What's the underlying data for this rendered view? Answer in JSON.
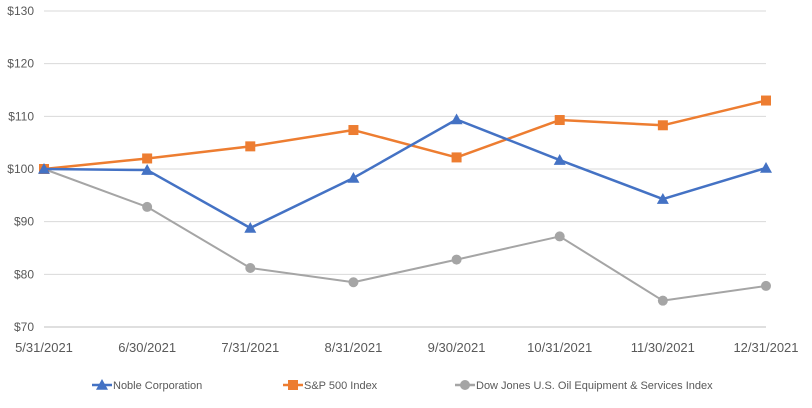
{
  "chart_data": {
    "type": "line",
    "title": "",
    "xlabel": "",
    "ylabel": "",
    "categories": [
      "5/31/2021",
      "6/30/2021",
      "7/31/2021",
      "8/31/2021",
      "9/30/2021",
      "10/31/2021",
      "11/30/2021",
      "12/31/2021"
    ],
    "ylim": [
      70,
      130
    ],
    "yticks": [
      70,
      80,
      90,
      100,
      110,
      120,
      130
    ],
    "ytick_labels": [
      "$70",
      "$80",
      "$90",
      "$100",
      "$110",
      "$120",
      "$130"
    ],
    "grid": true,
    "legend_position": "bottom",
    "series": [
      {
        "name": "Noble Corporation",
        "color": "#4472C4",
        "marker": "triangle",
        "values": [
          100,
          99.8,
          88.8,
          98.3,
          109.4,
          101.7,
          94.3,
          100.2
        ]
      },
      {
        "name": "S&P 500 Index",
        "color": "#ED7D31",
        "marker": "square",
        "values": [
          100,
          102,
          104.3,
          107.4,
          102.2,
          109.3,
          108.3,
          113
        ]
      },
      {
        "name": "Dow Jones U.S. Oil Equipment & Services Index",
        "color": "#A5A5A5",
        "marker": "circle",
        "values": [
          100,
          92.8,
          81.2,
          78.5,
          82.8,
          87.2,
          75,
          77.8
        ]
      }
    ]
  }
}
